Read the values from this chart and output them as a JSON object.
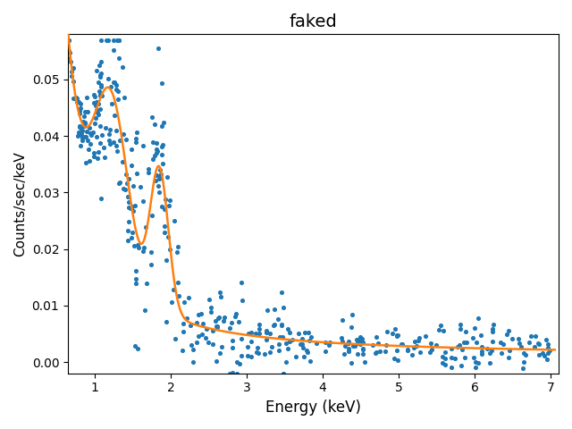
{
  "title": "faked",
  "xlabel": "Energy (keV)",
  "ylabel": "Counts/sec/keV",
  "xlim": [
    0.65,
    7.1
  ],
  "ylim": [
    -0.002,
    0.058
  ],
  "dot_color": "#1f77b4",
  "line_color": "#ff7f0e",
  "dot_size": 7,
  "line_width": 1.8,
  "figsize": [
    6.4,
    4.8
  ],
  "dpi": 100,
  "seed": 12345
}
